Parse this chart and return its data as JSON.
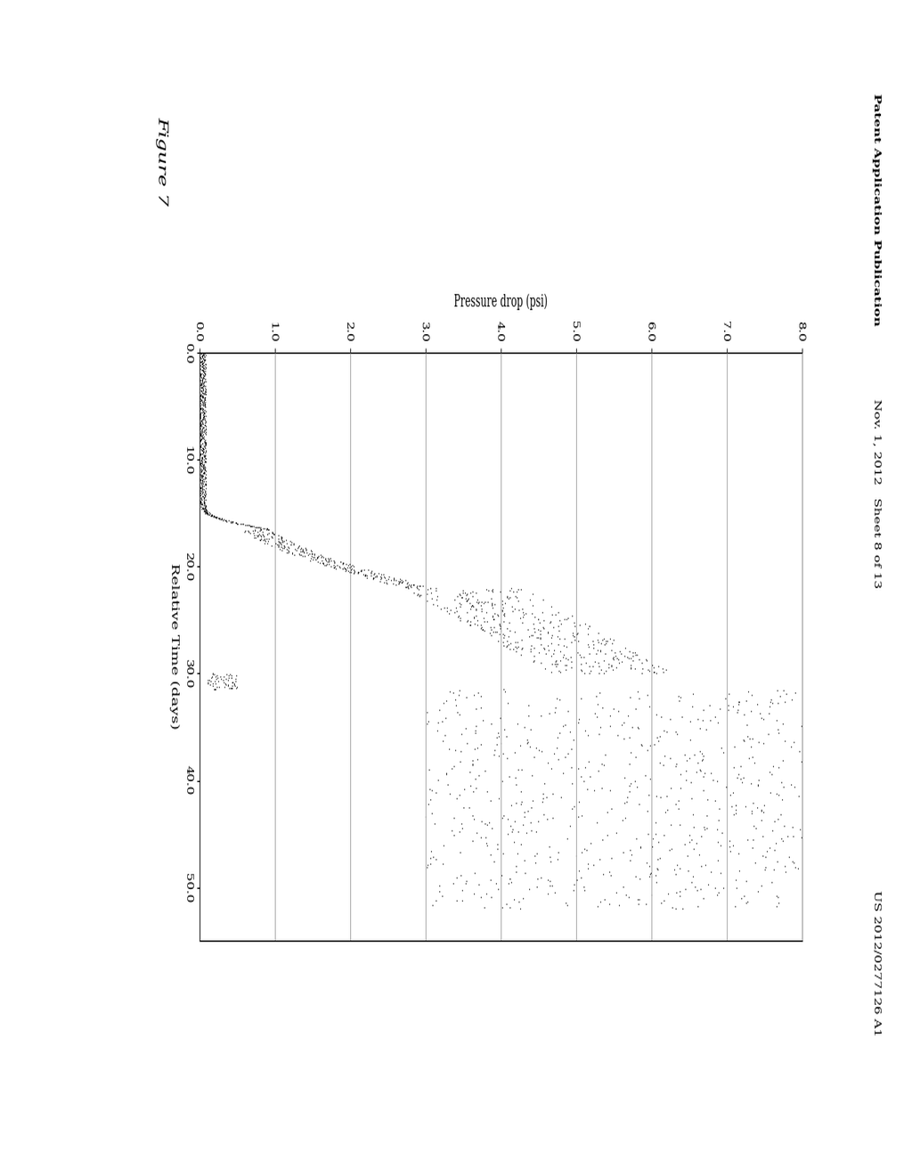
{
  "xlabel": "Relative Time (days)",
  "ylabel": "Pressure drop (psi)",
  "figure_label": "Figure 7",
  "header_left": "Patent Application Publication",
  "header_mid": "Nov. 1, 2012   Sheet 8 of 13",
  "header_right": "US 2012/0277126 A1",
  "x_lim": [
    0.0,
    55.0
  ],
  "y_lim": [
    0.0,
    8.0
  ],
  "x_ticks": [
    0.0,
    10.0,
    20.0,
    30.0,
    40.0,
    50.0
  ],
  "x_tick_labels": [
    "0.0",
    "10.0",
    "20.0",
    "30.0",
    "40.0",
    "50.0"
  ],
  "y_ticks": [
    0.0,
    1.0,
    2.0,
    3.0,
    4.0,
    5.0,
    6.0,
    7.0,
    8.0
  ],
  "y_tick_labels": [
    "0.0",
    "1.0",
    "2.0",
    "3.0",
    "4.0",
    "5.0",
    "6.0",
    "7.0",
    "8.0"
  ],
  "bg_color": "#ffffff",
  "data_color": "#111111",
  "grid_color": "#999999",
  "axis_color": "#000000"
}
